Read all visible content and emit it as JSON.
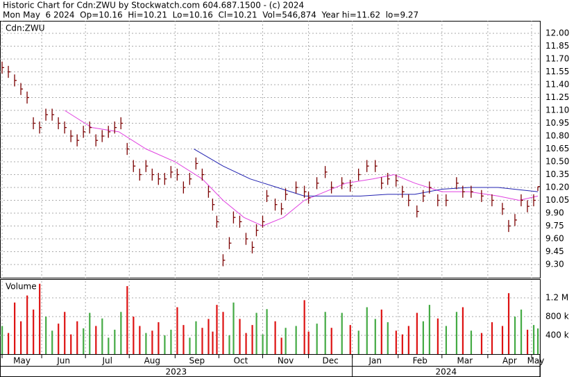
{
  "header": {
    "line1": "Historic Chart for Cdn:ZWU by Stockwatch.com 604.687.1500 - (c) 2024",
    "line2": "Mon May  6 2024  Op=10.16  Hi=10.21  Lo=10.16  Cl=10.21  Vol=546,874  Year hi=11.62  lo=9.27"
  },
  "chart_data": [
    {
      "type": "ohlc",
      "label": "Cdn:ZWU",
      "color": "#7a0000",
      "grid": true,
      "xlim": [
        -1,
        258
      ],
      "ylim": [
        9.146,
        12.146
      ],
      "yticks": [
        {
          "value": 12,
          "label": "12.00"
        },
        11.85,
        {
          "value": 11.7,
          "label": "11.70"
        },
        11.55,
        {
          "value": 11.4,
          "label": "11.40"
        },
        11.25,
        {
          "value": 11.1,
          "label": "11.10"
        },
        10.95,
        {
          "value": 10.8,
          "label": "10.80"
        },
        10.65,
        {
          "value": 10.5,
          "label": "10.50"
        },
        10.35,
        {
          "value": 10.2,
          "label": "10.20"
        },
        10.05,
        {
          "value": 9.9,
          "label": "9.90"
        },
        9.75,
        {
          "value": 9.6,
          "label": "9.60"
        },
        9.45,
        {
          "value": 9.3,
          "label": "9.30"
        }
      ],
      "x": [
        0,
        3,
        6,
        9,
        12,
        15,
        18,
        21,
        24,
        27,
        30,
        33,
        36,
        39,
        42,
        45,
        48,
        51,
        54,
        57,
        60,
        63,
        66,
        69,
        72,
        75,
        78,
        81,
        84,
        87,
        90,
        93,
        96,
        99,
        101,
        103,
        106,
        109,
        111,
        114,
        117,
        120,
        122,
        125,
        127,
        131,
        134,
        136,
        141,
        145,
        147,
        151,
        155,
        158,
        163,
        167,
        171,
        175,
        179,
        182,
        185,
        189,
        192,
        195,
        199,
        202,
        205,
        209,
        213,
        218,
        221,
        225,
        230,
        235,
        240,
        243,
        246,
        249,
        252,
        255,
        257
      ],
      "high": [
        11.67,
        11.62,
        11.52,
        11.42,
        11.32,
        11.02,
        10.97,
        11.12,
        11.12,
        11.02,
        10.97,
        10.87,
        10.82,
        10.92,
        10.97,
        10.82,
        10.87,
        10.92,
        10.97,
        11.02,
        10.72,
        10.52,
        10.42,
        10.52,
        10.42,
        10.37,
        10.37,
        10.45,
        10.42,
        10.27,
        10.37,
        10.55,
        10.42,
        10.22,
        10.07,
        9.87,
        9.42,
        9.62,
        9.92,
        9.87,
        9.67,
        9.57,
        9.77,
        9.87,
        10.17,
        10.07,
        10.02,
        10.19,
        10.27,
        10.22,
        10.15,
        10.32,
        10.45,
        10.27,
        10.32,
        10.29,
        10.42,
        10.52,
        10.52,
        10.32,
        10.37,
        10.35,
        10.22,
        10.12,
        9.99,
        10.17,
        10.27,
        10.12,
        10.12,
        10.32,
        10.22,
        10.22,
        10.17,
        10.12,
        10.02,
        9.82,
        9.89,
        10.12,
        10.05,
        10.12,
        10.21
      ],
      "low": [
        11.53,
        11.48,
        11.38,
        11.28,
        11.18,
        10.88,
        10.83,
        10.98,
        10.98,
        10.88,
        10.83,
        10.73,
        10.68,
        10.78,
        10.83,
        10.68,
        10.73,
        10.78,
        10.83,
        10.88,
        10.58,
        10.38,
        10.28,
        10.38,
        10.28,
        10.23,
        10.23,
        10.31,
        10.28,
        10.13,
        10.23,
        10.41,
        10.28,
        10.08,
        9.93,
        9.73,
        9.28,
        9.48,
        9.78,
        9.73,
        9.53,
        9.43,
        9.63,
        9.73,
        10.03,
        9.93,
        9.88,
        10.05,
        10.13,
        10.08,
        10.01,
        10.18,
        10.31,
        10.13,
        10.18,
        10.15,
        10.28,
        10.38,
        10.38,
        10.18,
        10.23,
        10.21,
        10.08,
        9.98,
        9.85,
        10.03,
        10.13,
        9.98,
        9.98,
        10.18,
        10.08,
        10.08,
        10.03,
        9.98,
        9.88,
        9.68,
        9.75,
        9.98,
        9.91,
        9.98,
        10.16
      ],
      "close": [
        11.6,
        11.55,
        11.45,
        11.35,
        11.25,
        10.95,
        10.9,
        11.05,
        11.05,
        10.95,
        10.9,
        10.8,
        10.75,
        10.85,
        10.9,
        10.75,
        10.8,
        10.85,
        10.9,
        10.95,
        10.65,
        10.45,
        10.35,
        10.45,
        10.35,
        10.3,
        10.3,
        10.38,
        10.35,
        10.2,
        10.3,
        10.48,
        10.35,
        10.15,
        10,
        9.8,
        9.35,
        9.55,
        9.85,
        9.8,
        9.6,
        9.5,
        9.7,
        9.8,
        10.1,
        10,
        9.95,
        10.12,
        10.2,
        10.15,
        10.08,
        10.25,
        10.38,
        10.2,
        10.25,
        10.22,
        10.35,
        10.45,
        10.45,
        10.25,
        10.3,
        10.28,
        10.15,
        10.05,
        9.92,
        10.1,
        10.2,
        10.05,
        10.05,
        10.25,
        10.15,
        10.15,
        10.1,
        10.05,
        9.95,
        9.75,
        9.82,
        10.05,
        9.98,
        10.05,
        10.21
      ],
      "overlays": [
        {
          "color": "#e040e0",
          "x": [
            30,
            43,
            56,
            69,
            83,
            96,
            106,
            116,
            125,
            135,
            145,
            155,
            165,
            178,
            188,
            198,
            211,
            224,
            238,
            248,
            257
          ],
          "values": [
            11.1,
            10.9,
            10.85,
            10.65,
            10.5,
            10.3,
            10.05,
            9.85,
            9.75,
            9.85,
            10.05,
            10.15,
            10.25,
            10.3,
            10.35,
            10.25,
            10.15,
            10.15,
            10.1,
            10.05,
            10.1
          ]
        },
        {
          "color": "#2020b0",
          "x": [
            92,
            106,
            119,
            132,
            145,
            158,
            172,
            185,
            198,
            211,
            224,
            238,
            257
          ],
          "values": [
            10.65,
            10.45,
            10.3,
            10.2,
            10.1,
            10.1,
            10.1,
            10.12,
            10.12,
            10.18,
            10.2,
            10.2,
            10.15
          ]
        }
      ]
    },
    {
      "type": "volume",
      "label": "Volume",
      "up_color": "#44aa44",
      "down_color": "#dd1111",
      "grid": true,
      "xlim": [
        -1,
        258
      ],
      "ylim": [
        0,
        1585000
      ],
      "yticks": [
        {
          "value": 1200000,
          "label": "1.2 M"
        },
        {
          "value": 800000,
          "label": "800 k"
        },
        {
          "value": 400000,
          "label": "400 k"
        }
      ],
      "x": [
        0,
        3,
        6,
        9,
        12,
        15,
        18,
        21,
        24,
        27,
        30,
        33,
        36,
        39,
        42,
        45,
        48,
        51,
        54,
        57,
        60,
        63,
        66,
        69,
        72,
        75,
        78,
        81,
        84,
        87,
        90,
        93,
        96,
        99,
        101,
        103,
        106,
        109,
        111,
        114,
        117,
        120,
        122,
        125,
        127,
        131,
        134,
        136,
        141,
        145,
        147,
        151,
        155,
        158,
        163,
        167,
        171,
        175,
        179,
        182,
        185,
        189,
        192,
        195,
        199,
        202,
        205,
        209,
        213,
        218,
        221,
        225,
        230,
        235,
        240,
        243,
        246,
        249,
        252,
        255,
        257
      ],
      "values": [
        600000,
        450000,
        1100000,
        700000,
        1250000,
        950000,
        1500000,
        800000,
        500000,
        650000,
        900000,
        420000,
        700000,
        550000,
        880000,
        600000,
        760000,
        350000,
        520000,
        900000,
        1450000,
        800000,
        600000,
        450000,
        500000,
        680000,
        400000,
        520000,
        1000000,
        620000,
        350000,
        700000,
        560000,
        750000,
        480000,
        1050000,
        900000,
        400000,
        1100000,
        750000,
        450000,
        620000,
        880000,
        420000,
        960000,
        700000,
        350000,
        560000,
        600000,
        1150000,
        480000,
        650000,
        900000,
        560000,
        880000,
        620000,
        500000,
        1000000,
        750000,
        950000,
        680000,
        500000,
        420000,
        600000,
        880000,
        700000,
        1050000,
        760000,
        600000,
        900000,
        1000000,
        500000,
        450000,
        680000,
        600000,
        1300000,
        800000,
        950000,
        520000,
        620000,
        546874
      ],
      "xticks": [
        {
          "value": 0,
          "label": "May"
        },
        {
          "value": 19,
          "label": "Jun"
        },
        {
          "value": 40,
          "label": "Jul"
        },
        {
          "value": 61,
          "label": "Aug"
        },
        {
          "value": 83,
          "label": "Sep"
        },
        {
          "value": 104,
          "label": "Oct"
        },
        {
          "value": 125,
          "label": "Nov"
        },
        {
          "value": 147,
          "label": "Dec"
        },
        {
          "value": 168,
          "label": "Jan"
        },
        {
          "value": 190,
          "label": "Feb"
        },
        {
          "value": 211,
          "label": "Mar"
        },
        {
          "value": 233,
          "label": "Apr"
        },
        {
          "value": 254,
          "label": "May"
        }
      ],
      "x_groups": [
        {
          "label": "2023",
          "start": -1,
          "end": 168
        },
        {
          "label": "2024",
          "start": 168,
          "end": 258
        }
      ]
    }
  ]
}
